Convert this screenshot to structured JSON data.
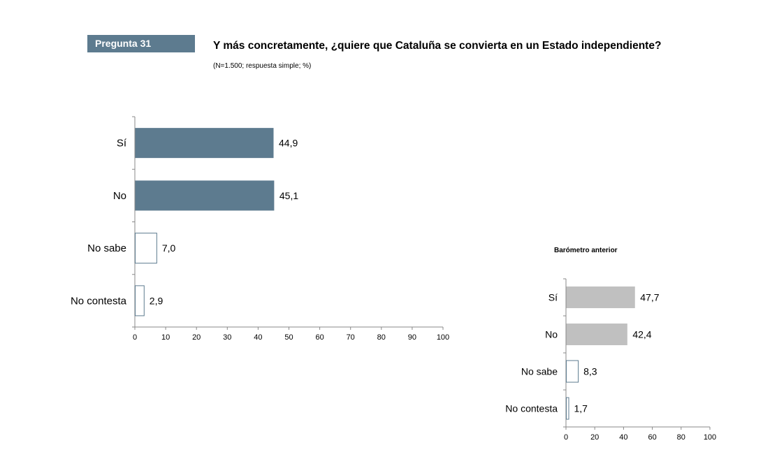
{
  "header": {
    "question_label": "Pregunta 31",
    "question_text": "Y más concretamente, ¿quiere que Cataluña se convierta en un Estado independiente?",
    "note": "(N=1.500; respuesta simple; %)"
  },
  "chart_data": [
    {
      "type": "bar",
      "orientation": "horizontal",
      "title": "",
      "categories": [
        "Sí",
        "No",
        "No sabe",
        "No contesta"
      ],
      "values": [
        44.9,
        45.1,
        7.0,
        2.9
      ],
      "value_labels": [
        "44,9",
        "45,1",
        "7,0",
        "2,9"
      ],
      "bar_styles": [
        "filled",
        "filled",
        "outline",
        "outline"
      ],
      "xlim": [
        0,
        100
      ],
      "xticks": [
        0,
        10,
        20,
        30,
        40,
        50,
        60,
        70,
        80,
        90,
        100
      ],
      "grid": false,
      "colors": {
        "fill": "#5d7b8f",
        "outline": "#5d7b8f"
      }
    },
    {
      "type": "bar",
      "orientation": "horizontal",
      "title": "Barómetro anterior",
      "categories": [
        "Sí",
        "No",
        "No sabe",
        "No contesta"
      ],
      "values": [
        47.7,
        42.4,
        8.3,
        1.7
      ],
      "value_labels": [
        "47,7",
        "42,4",
        "8,3",
        "1,7"
      ],
      "bar_styles": [
        "filled",
        "filled",
        "outline",
        "outline"
      ],
      "xlim": [
        0,
        100
      ],
      "xticks": [
        0,
        20,
        40,
        60,
        80,
        100
      ],
      "grid": false,
      "colors": {
        "fill": "#c0c0c0",
        "outline": "#5d7b8f"
      }
    }
  ]
}
